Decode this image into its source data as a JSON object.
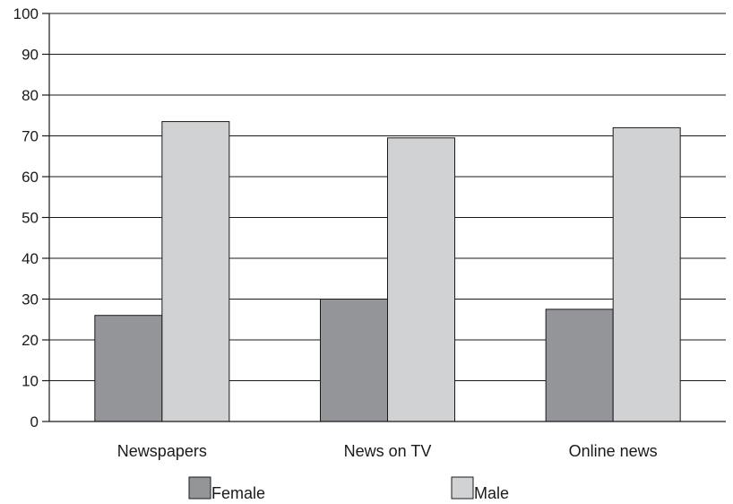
{
  "chart_data": {
    "type": "bar",
    "title": "",
    "xlabel": "",
    "ylabel": "",
    "categories": [
      "Newspapers",
      "News on TV",
      "Online news"
    ],
    "series": [
      {
        "name": "Female",
        "values": [
          26,
          30,
          27.5
        ],
        "color": "#939598"
      },
      {
        "name": "Male",
        "values": [
          73.5,
          69.5,
          72
        ],
        "color": "#d1d2d4"
      }
    ],
    "ylim": [
      0,
      100
    ],
    "yticks": [
      0,
      10,
      20,
      30,
      40,
      50,
      60,
      70,
      80,
      90,
      100
    ],
    "grid": true,
    "legend": "bottom"
  }
}
